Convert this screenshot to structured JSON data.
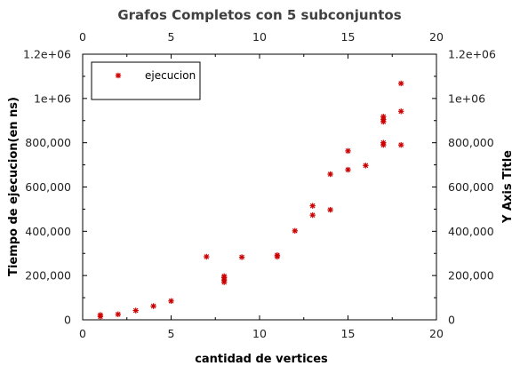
{
  "chart_data": {
    "type": "scatter",
    "title": "Grafos Completos con 5 subconjuntos",
    "xlabel": "cantidad de vertices",
    "ylabel": "Tiempo de ejecucion(en ns)",
    "ylabel_right": "Y Axis Title",
    "xlim": [
      0,
      20
    ],
    "ylim": [
      0,
      1200000
    ],
    "x_ticks": [
      0,
      5,
      10,
      15,
      20
    ],
    "x_tick_labels": [
      "0",
      "5",
      "10",
      "15",
      "20"
    ],
    "y_ticks": [
      0,
      200000,
      400000,
      600000,
      800000,
      1000000,
      1200000
    ],
    "y_tick_labels": [
      "0",
      "200,000",
      "400,000",
      "600,000",
      "800,000",
      "1e+06",
      "1.2e+06"
    ],
    "grid": false,
    "legend_position": "top-left",
    "series": [
      {
        "name": "ejecucion",
        "color": "#cc0000",
        "marker": "asterisk",
        "points": [
          [
            1,
            15000
          ],
          [
            1,
            22000
          ],
          [
            2,
            25000
          ],
          [
            3,
            42000
          ],
          [
            4,
            62000
          ],
          [
            5,
            85000
          ],
          [
            7,
            285000
          ],
          [
            8,
            170000
          ],
          [
            8,
            180000
          ],
          [
            8,
            190000
          ],
          [
            8,
            197000
          ],
          [
            9,
            283000
          ],
          [
            11,
            285000
          ],
          [
            11,
            292000
          ],
          [
            12,
            402000
          ],
          [
            13,
            473000
          ],
          [
            13,
            515000
          ],
          [
            14,
            497000
          ],
          [
            14,
            658000
          ],
          [
            15,
            678000
          ],
          [
            15,
            763000
          ],
          [
            16,
            697000
          ],
          [
            17,
            790000
          ],
          [
            17,
            800000
          ],
          [
            17,
            895000
          ],
          [
            17,
            905000
          ],
          [
            17,
            918000
          ],
          [
            18,
            790000
          ],
          [
            18,
            942000
          ],
          [
            18,
            1068000
          ]
        ]
      }
    ]
  }
}
